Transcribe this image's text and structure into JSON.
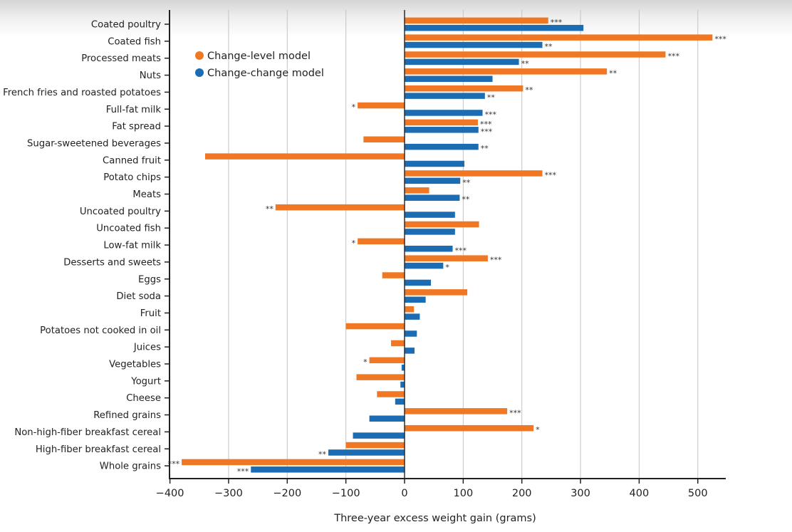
{
  "chart_data": {
    "type": "bar",
    "orientation": "horizontal",
    "title": "",
    "xlabel": "Three-year excess weight gain (grams)",
    "ylabel": "",
    "xlim": [
      -400,
      550
    ],
    "xticks": [
      -400,
      -300,
      -200,
      -100,
      0,
      100,
      200,
      300,
      400,
      500
    ],
    "xtick_labels": [
      "−400",
      "−300",
      "−200",
      "−100",
      "0",
      "100",
      "200",
      "300",
      "400",
      "500"
    ],
    "grid": "vertical",
    "legend_position": "top-left",
    "categories": [
      "Coated poultry",
      "Coated fish",
      "Processed meats",
      "Nuts",
      "French fries and roasted potatoes",
      "Full-fat milk",
      "Fat spread",
      "Sugar-sweetened beverages",
      "Canned fruit",
      "Potato chips",
      "Meats",
      "Uncoated poultry",
      "Uncoated fish",
      "Low-fat milk",
      "Desserts and sweets",
      "Eggs",
      "Diet soda",
      "Fruit",
      "Potatoes not cooked in oil",
      "Juices",
      "Vegetables",
      "Yogurt",
      "Cheese",
      "Refined grains",
      "Non-high-fiber breakfast cereal",
      "High-fiber breakfast cereal",
      "Whole grains"
    ],
    "series": [
      {
        "name": "Change-level model",
        "color": "#f07824",
        "values": [
          245,
          525,
          445,
          345,
          202,
          -80,
          125,
          -70,
          -340,
          235,
          42,
          -220,
          127,
          -80,
          142,
          -38,
          107,
          16,
          -100,
          -23,
          -60,
          -82,
          -47,
          175,
          220,
          -100,
          -380
        ],
        "significance": [
          "***",
          "***",
          "***",
          "**",
          "**",
          "*",
          "***",
          "",
          "",
          "***",
          "",
          "**",
          "",
          "*",
          "***",
          "",
          "",
          "",
          "",
          "",
          "*",
          "",
          "",
          "***",
          "*",
          "",
          "***"
        ]
      },
      {
        "name": "Change-change model",
        "color": "#1b6cb3",
        "values": [
          305,
          235,
          195,
          150,
          137,
          133,
          126,
          126,
          102,
          95,
          94,
          86,
          86,
          82,
          66,
          45,
          36,
          26,
          21,
          17,
          -5,
          -7,
          -16,
          -60,
          -88,
          -130,
          -262
        ],
        "significance": [
          "",
          "**",
          "**",
          "",
          "**",
          "***",
          "***",
          "**",
          "",
          "**",
          "**",
          "",
          "",
          "***",
          "*",
          "",
          "",
          "",
          "",
          "",
          "",
          "",
          "",
          "",
          "",
          "**",
          "***"
        ]
      }
    ]
  }
}
